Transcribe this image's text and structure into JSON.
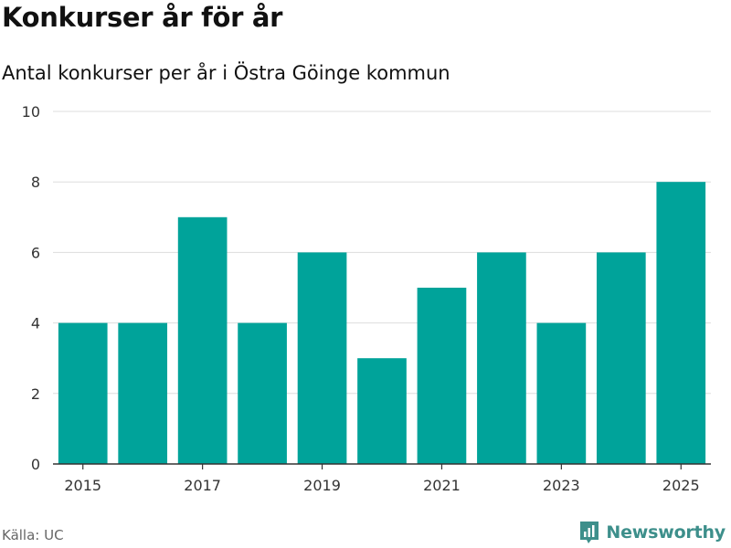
{
  "title": "Konkurser år för år",
  "subtitle": "Antal konkurser per år i Östra Göinge kommun",
  "source": "Källa: UC",
  "brand": {
    "name": "Newsworthy",
    "icon": "newsworthy-logo-icon"
  },
  "colors": {
    "bar": "#00a39a",
    "grid": "#dddddd",
    "axis": "#333333",
    "brand": "#3d8f8b"
  },
  "chart_data": {
    "type": "bar",
    "categories": [
      "2015",
      "2016",
      "2017",
      "2018",
      "2019",
      "2020",
      "2021",
      "2022",
      "2023",
      "2024",
      "2025"
    ],
    "values": [
      4,
      4,
      7,
      4,
      6,
      3,
      5,
      6,
      4,
      6,
      8
    ],
    "xticks": [
      "2015",
      "2017",
      "2019",
      "2021",
      "2023",
      "2025"
    ],
    "yticks": [
      0,
      2,
      4,
      6,
      8,
      10
    ],
    "ylim": [
      0,
      10
    ],
    "xlabel": "",
    "ylabel": "",
    "grid": true,
    "legend": "none"
  }
}
